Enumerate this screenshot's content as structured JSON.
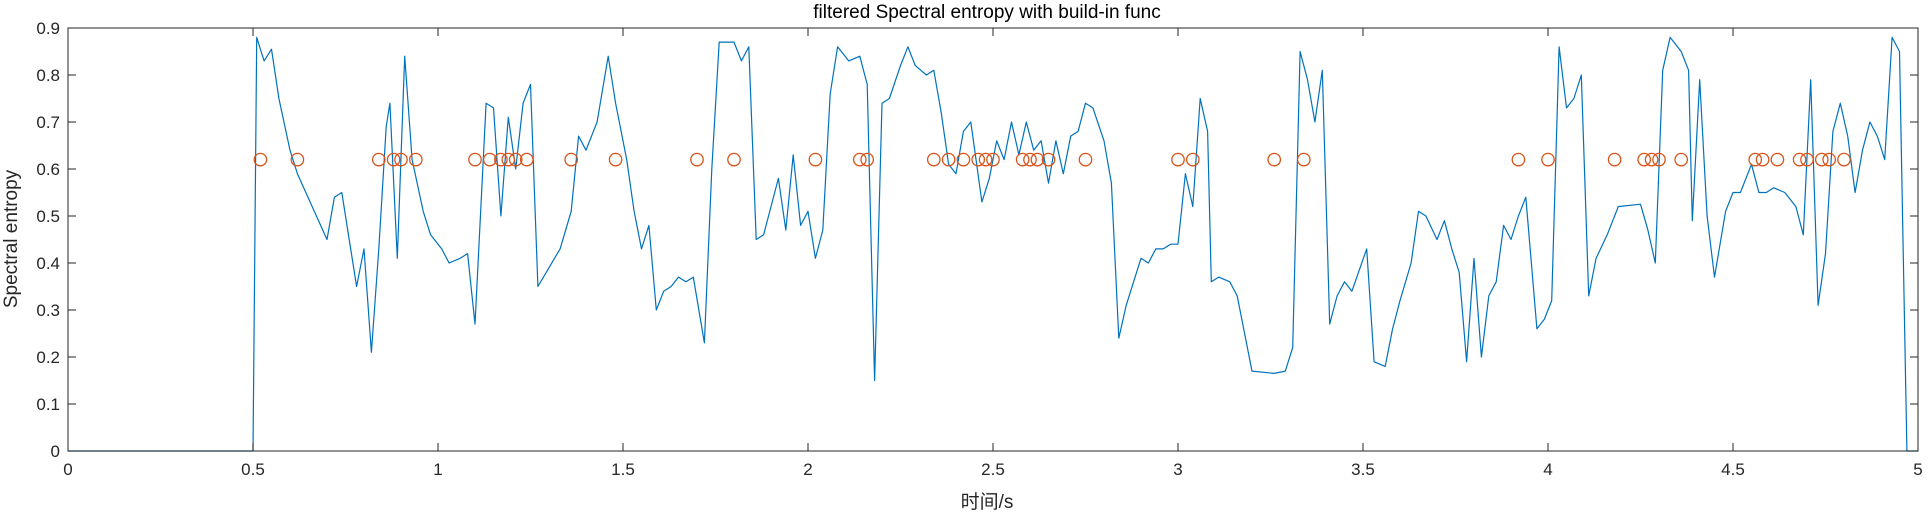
{
  "chart_data": {
    "type": "line",
    "title": "filtered Spectral entropy with build-in func",
    "xlabel": "时间/s",
    "ylabel": "Spectral entropy",
    "xlim": [
      0,
      5
    ],
    "ylim": [
      0,
      0.9
    ],
    "xticks": [
      "0",
      "0.5",
      "1",
      "1.5",
      "2",
      "2.5",
      "3",
      "3.5",
      "4",
      "4.5",
      "5"
    ],
    "yticks": [
      "0",
      "0.1",
      "0.2",
      "0.3",
      "0.4",
      "0.5",
      "0.6",
      "0.7",
      "0.8",
      "0.9"
    ],
    "grid": false,
    "colors": {
      "line": "#0072BD",
      "markers": "#D95319",
      "axis": "#262626"
    },
    "series": [
      {
        "style": "line",
        "points": [
          [
            0,
            0
          ],
          [
            0.5,
            0
          ],
          [
            0.51,
            0.88
          ],
          [
            0.53,
            0.83
          ],
          [
            0.55,
            0.855
          ],
          [
            0.57,
            0.75
          ],
          [
            0.6,
            0.64
          ],
          [
            0.62,
            0.59
          ],
          [
            0.66,
            0.52
          ],
          [
            0.7,
            0.45
          ],
          [
            0.72,
            0.54
          ],
          [
            0.74,
            0.55
          ],
          [
            0.76,
            0.45
          ],
          [
            0.78,
            0.35
          ],
          [
            0.8,
            0.43
          ],
          [
            0.82,
            0.21
          ],
          [
            0.84,
            0.43
          ],
          [
            0.86,
            0.69
          ],
          [
            0.87,
            0.74
          ],
          [
            0.89,
            0.41
          ],
          [
            0.91,
            0.84
          ],
          [
            0.93,
            0.62
          ],
          [
            0.96,
            0.51
          ],
          [
            0.98,
            0.46
          ],
          [
            1.01,
            0.43
          ],
          [
            1.03,
            0.4
          ],
          [
            1.06,
            0.41
          ],
          [
            1.08,
            0.42
          ],
          [
            1.1,
            0.27
          ],
          [
            1.13,
            0.74
          ],
          [
            1.15,
            0.73
          ],
          [
            1.17,
            0.5
          ],
          [
            1.19,
            0.71
          ],
          [
            1.21,
            0.6
          ],
          [
            1.23,
            0.74
          ],
          [
            1.25,
            0.78
          ],
          [
            1.27,
            0.35
          ],
          [
            1.3,
            0.39
          ],
          [
            1.33,
            0.43
          ],
          [
            1.36,
            0.51
          ],
          [
            1.38,
            0.67
          ],
          [
            1.4,
            0.64
          ],
          [
            1.43,
            0.7
          ],
          [
            1.46,
            0.84
          ],
          [
            1.48,
            0.74
          ],
          [
            1.51,
            0.62
          ],
          [
            1.53,
            0.51
          ],
          [
            1.55,
            0.43
          ],
          [
            1.57,
            0.48
          ],
          [
            1.59,
            0.3
          ],
          [
            1.61,
            0.34
          ],
          [
            1.63,
            0.35
          ],
          [
            1.65,
            0.37
          ],
          [
            1.67,
            0.36
          ],
          [
            1.69,
            0.37
          ],
          [
            1.72,
            0.23
          ],
          [
            1.74,
            0.6
          ],
          [
            1.76,
            0.87
          ],
          [
            1.8,
            0.87
          ],
          [
            1.82,
            0.83
          ],
          [
            1.84,
            0.86
          ],
          [
            1.86,
            0.45
          ],
          [
            1.88,
            0.46
          ],
          [
            1.9,
            0.52
          ],
          [
            1.92,
            0.58
          ],
          [
            1.94,
            0.47
          ],
          [
            1.96,
            0.63
          ],
          [
            1.98,
            0.48
          ],
          [
            2.0,
            0.51
          ],
          [
            2.02,
            0.41
          ],
          [
            2.04,
            0.47
          ],
          [
            2.06,
            0.76
          ],
          [
            2.08,
            0.86
          ],
          [
            2.11,
            0.83
          ],
          [
            2.14,
            0.84
          ],
          [
            2.16,
            0.78
          ],
          [
            2.18,
            0.15
          ],
          [
            2.2,
            0.74
          ],
          [
            2.22,
            0.75
          ],
          [
            2.25,
            0.82
          ],
          [
            2.27,
            0.86
          ],
          [
            2.29,
            0.82
          ],
          [
            2.32,
            0.8
          ],
          [
            2.34,
            0.81
          ],
          [
            2.36,
            0.72
          ],
          [
            2.38,
            0.61
          ],
          [
            2.4,
            0.59
          ],
          [
            2.42,
            0.68
          ],
          [
            2.44,
            0.7
          ],
          [
            2.47,
            0.53
          ],
          [
            2.49,
            0.58
          ],
          [
            2.51,
            0.66
          ],
          [
            2.53,
            0.62
          ],
          [
            2.55,
            0.7
          ],
          [
            2.57,
            0.63
          ],
          [
            2.59,
            0.7
          ],
          [
            2.61,
            0.64
          ],
          [
            2.63,
            0.66
          ],
          [
            2.65,
            0.57
          ],
          [
            2.67,
            0.66
          ],
          [
            2.69,
            0.59
          ],
          [
            2.71,
            0.67
          ],
          [
            2.73,
            0.68
          ],
          [
            2.75,
            0.74
          ],
          [
            2.77,
            0.73
          ],
          [
            2.8,
            0.66
          ],
          [
            2.82,
            0.57
          ],
          [
            2.84,
            0.24
          ],
          [
            2.86,
            0.31
          ],
          [
            2.88,
            0.36
          ],
          [
            2.9,
            0.41
          ],
          [
            2.92,
            0.4
          ],
          [
            2.94,
            0.43
          ],
          [
            2.96,
            0.43
          ],
          [
            2.98,
            0.44
          ],
          [
            3.0,
            0.44
          ],
          [
            3.02,
            0.59
          ],
          [
            3.04,
            0.52
          ],
          [
            3.06,
            0.75
          ],
          [
            3.08,
            0.68
          ],
          [
            3.09,
            0.36
          ],
          [
            3.11,
            0.37
          ],
          [
            3.14,
            0.36
          ],
          [
            3.16,
            0.33
          ],
          [
            3.2,
            0.17
          ],
          [
            3.26,
            0.165
          ],
          [
            3.29,
            0.17
          ],
          [
            3.31,
            0.22
          ],
          [
            3.33,
            0.85
          ],
          [
            3.35,
            0.79
          ],
          [
            3.37,
            0.7
          ],
          [
            3.39,
            0.81
          ],
          [
            3.41,
            0.27
          ],
          [
            3.43,
            0.33
          ],
          [
            3.45,
            0.36
          ],
          [
            3.47,
            0.34
          ],
          [
            3.51,
            0.43
          ],
          [
            3.53,
            0.19
          ],
          [
            3.56,
            0.18
          ],
          [
            3.58,
            0.26
          ],
          [
            3.6,
            0.32
          ],
          [
            3.63,
            0.4
          ],
          [
            3.65,
            0.51
          ],
          [
            3.67,
            0.5
          ],
          [
            3.7,
            0.45
          ],
          [
            3.72,
            0.49
          ],
          [
            3.74,
            0.43
          ],
          [
            3.76,
            0.38
          ],
          [
            3.78,
            0.19
          ],
          [
            3.8,
            0.41
          ],
          [
            3.82,
            0.2
          ],
          [
            3.84,
            0.33
          ],
          [
            3.86,
            0.36
          ],
          [
            3.88,
            0.48
          ],
          [
            3.9,
            0.45
          ],
          [
            3.92,
            0.5
          ],
          [
            3.94,
            0.54
          ],
          [
            3.97,
            0.26
          ],
          [
            3.99,
            0.28
          ],
          [
            4.01,
            0.32
          ],
          [
            4.03,
            0.86
          ],
          [
            4.05,
            0.73
          ],
          [
            4.07,
            0.75
          ],
          [
            4.09,
            0.8
          ],
          [
            4.11,
            0.33
          ],
          [
            4.13,
            0.41
          ],
          [
            4.16,
            0.46
          ],
          [
            4.19,
            0.52
          ],
          [
            4.25,
            0.525
          ],
          [
            4.27,
            0.47
          ],
          [
            4.29,
            0.4
          ],
          [
            4.31,
            0.81
          ],
          [
            4.33,
            0.88
          ],
          [
            4.36,
            0.85
          ],
          [
            4.38,
            0.81
          ],
          [
            4.39,
            0.49
          ],
          [
            4.41,
            0.79
          ],
          [
            4.43,
            0.5
          ],
          [
            4.45,
            0.37
          ],
          [
            4.48,
            0.51
          ],
          [
            4.5,
            0.55
          ],
          [
            4.52,
            0.55
          ],
          [
            4.55,
            0.61
          ],
          [
            4.57,
            0.55
          ],
          [
            4.59,
            0.55
          ],
          [
            4.61,
            0.56
          ],
          [
            4.64,
            0.55
          ],
          [
            4.67,
            0.52
          ],
          [
            4.69,
            0.46
          ],
          [
            4.71,
            0.79
          ],
          [
            4.73,
            0.31
          ],
          [
            4.75,
            0.42
          ],
          [
            4.77,
            0.68
          ],
          [
            4.79,
            0.74
          ],
          [
            4.81,
            0.67
          ],
          [
            4.83,
            0.55
          ],
          [
            4.85,
            0.64
          ],
          [
            4.87,
            0.7
          ],
          [
            4.89,
            0.67
          ],
          [
            4.91,
            0.62
          ],
          [
            4.93,
            0.88
          ],
          [
            4.95,
            0.85
          ],
          [
            4.97,
            0
          ],
          [
            5.0,
            0
          ]
        ]
      },
      {
        "style": "markers",
        "marker": "circle",
        "y": 0.62,
        "x": [
          0.52,
          0.62,
          0.84,
          0.88,
          0.9,
          0.94,
          1.1,
          1.14,
          1.17,
          1.19,
          1.21,
          1.24,
          1.36,
          1.48,
          1.7,
          1.8,
          2.02,
          2.14,
          2.16,
          2.34,
          2.38,
          2.42,
          2.46,
          2.48,
          2.5,
          2.58,
          2.6,
          2.62,
          2.65,
          2.75,
          3.0,
          3.04,
          3.26,
          3.34,
          3.92,
          4.0,
          4.18,
          4.26,
          4.28,
          4.3,
          4.36,
          4.56,
          4.58,
          4.62,
          4.68,
          4.7,
          4.74,
          4.76,
          4.8
        ]
      }
    ]
  }
}
